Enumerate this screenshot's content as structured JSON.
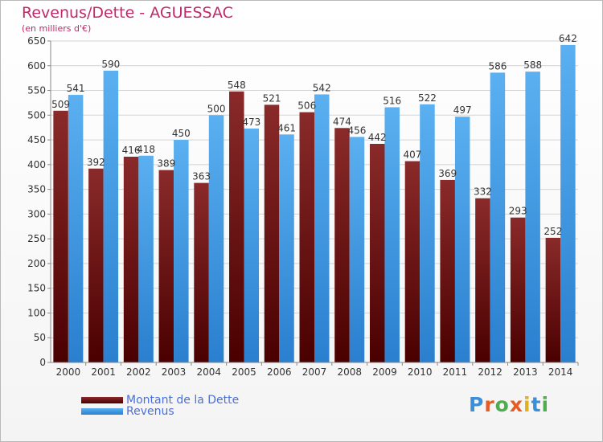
{
  "chart_data": {
    "type": "bar",
    "title": "Revenus/Dette - AGUESSAC",
    "subtitle": "(en milliers d'€)",
    "categories": [
      "2000",
      "2001",
      "2002",
      "2003",
      "2004",
      "2005",
      "2006",
      "2007",
      "2008",
      "2009",
      "2010",
      "2011",
      "2012",
      "2013",
      "2014"
    ],
    "series": [
      {
        "name": "Montant de la Dette",
        "color": "#7a1414",
        "values": [
          509,
          392,
          416,
          389,
          363,
          548,
          521,
          506,
          474,
          442,
          407,
          369,
          332,
          293,
          252
        ]
      },
      {
        "name": "Revenus",
        "color": "#3d9ae4",
        "values": [
          541,
          590,
          418,
          450,
          500,
          473,
          461,
          542,
          456,
          516,
          522,
          497,
          586,
          588,
          642
        ]
      }
    ],
    "ylim": [
      0,
      650
    ],
    "yticks": [
      0,
      50,
      100,
      150,
      200,
      250,
      300,
      350,
      400,
      450,
      500,
      550,
      600,
      650
    ],
    "grid": true,
    "legend": "bottom-left"
  },
  "brand": {
    "letters": [
      "P",
      "r",
      "o",
      "x",
      "i",
      "t",
      "i"
    ],
    "colors": [
      "#3a8fd8",
      "#e85a24",
      "#4cae4c",
      "#e85a24",
      "#e0b020",
      "#3a8fd8",
      "#4cae4c"
    ]
  }
}
